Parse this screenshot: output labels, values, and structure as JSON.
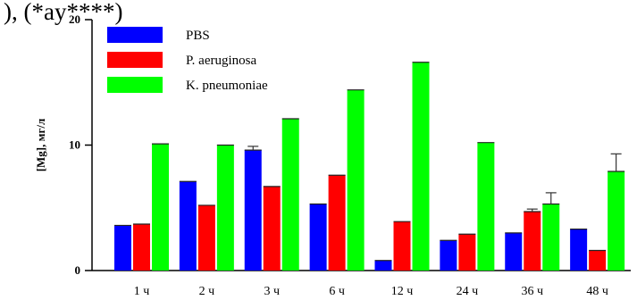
{
  "header_fragment": "), (*ay****)",
  "chart_data": {
    "type": "bar",
    "ylabel": "[Mg], мг/л",
    "ylim": [
      0,
      20
    ],
    "yticks": [
      0,
      10,
      20
    ],
    "categories": [
      "1 ч",
      "2 ч",
      "3 ч",
      "6 ч",
      "12 ч",
      "24 ч",
      "36 ч",
      "48 ч"
    ],
    "series": [
      {
        "name": "PBS",
        "color": "#0000ff",
        "values": [
          3.6,
          7.1,
          9.6,
          5.3,
          0.8,
          2.4,
          3.0,
          3.3
        ],
        "errors": [
          0,
          0,
          0.3,
          0,
          0,
          0,
          0,
          0
        ]
      },
      {
        "name": "P. aeruginosa",
        "color": "#ff0000",
        "values": [
          3.7,
          5.2,
          6.7,
          7.6,
          3.9,
          2.9,
          4.7,
          1.6
        ],
        "errors": [
          0,
          0,
          0,
          0,
          0,
          0,
          0.2,
          0
        ]
      },
      {
        "name": "K. pneumoniae",
        "color": "#00ff00",
        "values": [
          10.1,
          10.0,
          12.1,
          14.4,
          16.6,
          10.2,
          5.3,
          7.9
        ],
        "errors": [
          0,
          0,
          0,
          0,
          0,
          0,
          0.9,
          1.4
        ]
      }
    ],
    "legend_position": "top-left",
    "grid": false
  }
}
